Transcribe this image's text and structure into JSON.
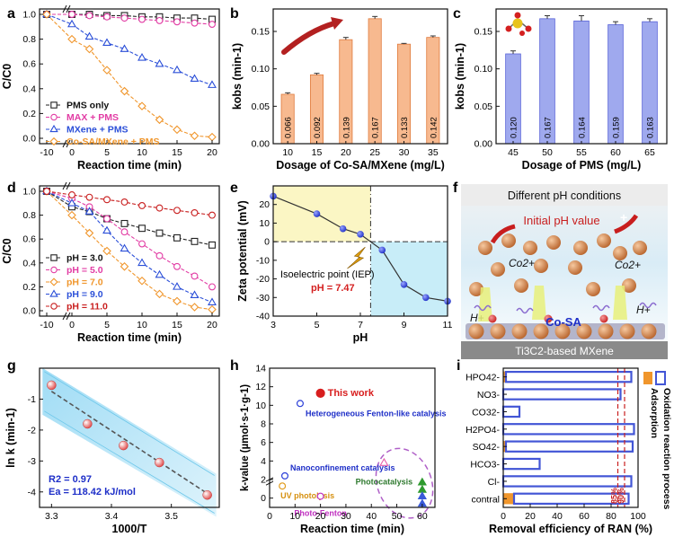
{
  "chart_data": [
    {
      "panel": "a",
      "type": "line",
      "xlabel": "Reaction time (min)",
      "ylabel": "C/C0",
      "xlim": [
        -10,
        20
      ],
      "ylim": [
        0,
        1
      ],
      "axis_break": true,
      "xticks": [
        "-10",
        "0",
        "5",
        "10",
        "15",
        "20"
      ],
      "yticks": [
        "0.0",
        "0.2",
        "0.4",
        "0.6",
        "0.8",
        "1.0"
      ],
      "x": [
        -10,
        0,
        2.5,
        5,
        7.5,
        10,
        12.5,
        15,
        17.5,
        20
      ],
      "legend_position": "bottom-left",
      "series": [
        {
          "name": "PMS only",
          "color": "#222222",
          "marker": "square",
          "values": [
            1.0,
            1.0,
            1.0,
            0.99,
            0.99,
            0.98,
            0.98,
            0.97,
            0.97,
            0.96
          ]
        },
        {
          "name": "MAX + PMS",
          "color": "#e23ca4",
          "marker": "circle",
          "values": [
            1.0,
            1.0,
            0.99,
            0.98,
            0.97,
            0.96,
            0.95,
            0.94,
            0.93,
            0.92
          ]
        },
        {
          "name": "MXene + PMS",
          "color": "#2b4fd8",
          "marker": "triangle",
          "values": [
            1.0,
            0.92,
            0.82,
            0.77,
            0.72,
            0.65,
            0.6,
            0.55,
            0.48,
            0.43
          ]
        },
        {
          "name": "Co-SA/MXene + PMS",
          "color": "#f0962c",
          "marker": "diamond",
          "values": [
            1.0,
            0.8,
            0.72,
            0.55,
            0.38,
            0.26,
            0.15,
            0.07,
            0.02,
            0.01
          ]
        }
      ]
    },
    {
      "panel": "b",
      "type": "bar",
      "xlabel": "Dosage of Co-SA/MXene (mg/L)",
      "ylabel": "kobs (min-1)",
      "categories": [
        "10",
        "15",
        "20",
        "25",
        "30",
        "35"
      ],
      "values": [
        0.066,
        0.092,
        0.139,
        0.167,
        0.133,
        0.142
      ],
      "data_labels": [
        "0.066",
        "0.092",
        "0.139",
        "0.167",
        "0.133",
        "0.142"
      ],
      "errors": [
        0.002,
        0.002,
        0.003,
        0.003,
        0.001,
        0.002
      ],
      "ylim": [
        0,
        0.18
      ],
      "yticks": [
        "0.00",
        "0.05",
        "0.10",
        "0.15"
      ],
      "bar_color": "#f7b98f"
    },
    {
      "panel": "c",
      "type": "bar",
      "xlabel": "Dosage of PMS (mg/L)",
      "ylabel": "kobs (min-1)",
      "categories": [
        "45",
        "50",
        "55",
        "60",
        "65"
      ],
      "values": [
        0.12,
        0.167,
        0.164,
        0.159,
        0.163
      ],
      "data_labels": [
        "0.120",
        "0.167",
        "0.164",
        "0.159",
        "0.163"
      ],
      "errors": [
        0.004,
        0.004,
        0.007,
        0.004,
        0.004
      ],
      "ylim": [
        0,
        0.18
      ],
      "yticks": [
        "0.00",
        "0.05",
        "0.10",
        "0.15"
      ],
      "bar_color": "#9fa9ee"
    },
    {
      "panel": "d",
      "type": "line",
      "xlabel": "Reaction time (min)",
      "ylabel": "C/C0",
      "xlim": [
        -10,
        20
      ],
      "ylim": [
        0,
        1
      ],
      "axis_break": true,
      "xticks": [
        "-10",
        "0",
        "5",
        "10",
        "15",
        "20"
      ],
      "yticks": [
        "0.0",
        "0.2",
        "0.4",
        "0.6",
        "0.8",
        "1.0"
      ],
      "x": [
        -10,
        0,
        2.5,
        5,
        7.5,
        10,
        12.5,
        15,
        17.5,
        20
      ],
      "legend_position": "bottom-left",
      "series": [
        {
          "name": "pH = 3.0",
          "color": "#222222",
          "marker": "square",
          "values": [
            1.0,
            0.87,
            0.83,
            0.77,
            0.73,
            0.69,
            0.65,
            0.61,
            0.58,
            0.55
          ]
        },
        {
          "name": "pH = 5.0",
          "color": "#e23ca4",
          "marker": "circle",
          "values": [
            1.0,
            0.94,
            0.87,
            0.77,
            0.66,
            0.56,
            0.46,
            0.37,
            0.29,
            0.2
          ]
        },
        {
          "name": "pH = 7.0",
          "color": "#f0962c",
          "marker": "diamond",
          "values": [
            1.0,
            0.8,
            0.65,
            0.5,
            0.37,
            0.25,
            0.14,
            0.08,
            0.03,
            0.01
          ]
        },
        {
          "name": "pH = 9.0",
          "color": "#2b4fd8",
          "marker": "triangle",
          "values": [
            1.0,
            0.9,
            0.83,
            0.67,
            0.52,
            0.4,
            0.3,
            0.2,
            0.13,
            0.07
          ]
        },
        {
          "name": "pH = 11.0",
          "color": "#c81e1e",
          "marker": "circle",
          "values": [
            1.0,
            0.97,
            0.95,
            0.93,
            0.91,
            0.88,
            0.86,
            0.84,
            0.82,
            0.8
          ]
        }
      ]
    },
    {
      "panel": "e",
      "type": "line",
      "xlabel": "pH",
      "ylabel": "Zeta potential (mV)",
      "xlim": [
        3,
        11
      ],
      "ylim": [
        -40,
        30
      ],
      "xticks": [
        "3",
        "5",
        "7",
        "9",
        "11"
      ],
      "yticks": [
        "-40",
        "-30",
        "-20",
        "-10",
        "0",
        "10",
        "20"
      ],
      "x": [
        3,
        5,
        6.2,
        7,
        8,
        9,
        10,
        11
      ],
      "values": [
        24.5,
        15,
        7,
        4,
        -4.5,
        -23,
        -30,
        -32
      ],
      "point_color": "#2b3fd8",
      "annotation": "Isoelectric point (IEP)",
      "annotation_value": "pH = 7.47",
      "iep": 7.47
    },
    {
      "panel": "g",
      "type": "scatter",
      "xlabel": "1000/T",
      "ylabel": "ln k (min-1)",
      "xlim": [
        3.28,
        3.58
      ],
      "ylim": [
        -4.5,
        0
      ],
      "xticks": [
        "3.3",
        "3.4",
        "3.5"
      ],
      "yticks": [
        "-4",
        "-3",
        "-2",
        "-1"
      ],
      "x": [
        3.3,
        3.36,
        3.42,
        3.48,
        3.56
      ],
      "values": [
        -0.55,
        -1.8,
        -2.5,
        -3.05,
        -4.1
      ],
      "fit_x": [
        3.3,
        3.56
      ],
      "fit_y": [
        -0.75,
        -4.05
      ],
      "annotations": [
        "R2 = 0.97",
        "Ea = 118.42 kJ/mol"
      ]
    },
    {
      "panel": "h",
      "type": "scatter",
      "xlabel": "Reaction time (min)",
      "ylabel": "k-value (µmol·s-1·g-1)",
      "xlim": [
        0,
        65
      ],
      "ylim": [
        0,
        14
      ],
      "xticks": [
        "0",
        "10",
        "20",
        "30",
        "40",
        "50",
        "60"
      ],
      "yticks": [
        "0",
        "2",
        "4",
        "6",
        "8",
        "10",
        "12",
        "14"
      ],
      "points": [
        {
          "label": "This work",
          "x": 20,
          "y": 11.3,
          "color": "#d81e1e",
          "marker": "circle"
        },
        {
          "label": "Heterogeneous Fenton-like catalysis",
          "x": 12,
          "y": 10.2,
          "color": "#2b3fd8",
          "marker": "circle"
        },
        {
          "label": "Nanoconfinement catalysis",
          "x": 6,
          "y": 2.4,
          "color": "#2b3fd8",
          "marker": "circle"
        },
        {
          "label": "UV photolysis",
          "x": 5,
          "y": 1.3,
          "color": "#e09a1a",
          "marker": "circle"
        },
        {
          "label": "Photo-Fenton",
          "x": 20,
          "y": 0.2,
          "color": "#c030c0",
          "marker": "circle"
        },
        {
          "label": "Photocatalysis",
          "x": 45,
          "y": 3.8,
          "color": "#e85aa8",
          "marker": "triangle"
        },
        {
          "label": "",
          "x": 60,
          "y": 1.7,
          "color": "#2f9a2f",
          "marker": "triangle"
        },
        {
          "label": "",
          "x": 60,
          "y": 0.9,
          "color": "#2f9a2f",
          "marker": "triangle"
        },
        {
          "label": "",
          "x": 60,
          "y": 0.2,
          "color": "#3a5ad8",
          "marker": "triangle"
        },
        {
          "label": "",
          "x": 60,
          "y": -0.6,
          "color": "#3a5ad8",
          "marker": "triangle"
        }
      ]
    },
    {
      "panel": "i",
      "type": "bar",
      "orientation": "horizontal",
      "xlabel": "Removal efficiency of RAN (%)",
      "xlim": [
        0,
        100
      ],
      "xticks": [
        "0",
        "20",
        "40",
        "60",
        "80",
        "100"
      ],
      "categories": [
        "HPO42-",
        "NO3-",
        "CO32-",
        "H2PO4-",
        "SO42-",
        "HCO3-",
        "Cl-",
        "contral"
      ],
      "series": [
        {
          "name": "Adsorption",
          "color": "#f0962c",
          "values": [
            2,
            0,
            0,
            0,
            2,
            0,
            0,
            8
          ]
        },
        {
          "name": "Oxidation reaction process",
          "color": "#4356d6",
          "values": [
            95,
            87,
            12,
            97,
            96,
            27,
            95,
            93
          ]
        }
      ],
      "reference_lines": [
        {
          "label": "85%",
          "value": 85
        },
        {
          "label": "90%",
          "value": 90
        }
      ]
    }
  ],
  "panels": {
    "a": "a",
    "b": "b",
    "c": "c",
    "d": "d",
    "e": "e",
    "f": "f",
    "g": "g",
    "h": "h",
    "i": "i"
  },
  "illustration_f": {
    "title": "Different pH conditions",
    "subtitle": "Initial pH value",
    "ion_left": "Co2+",
    "ion_right": "Co2+",
    "proton_left": "H+",
    "proton_right": "H+",
    "site_label": "Co-SA",
    "substrate_label": "Ti3C2-based MXene"
  },
  "colors": {
    "axis": "#111111",
    "yellow_region": "#fbf6c4",
    "blue_region": "#c8edf8",
    "band_g": "#a8def5"
  }
}
